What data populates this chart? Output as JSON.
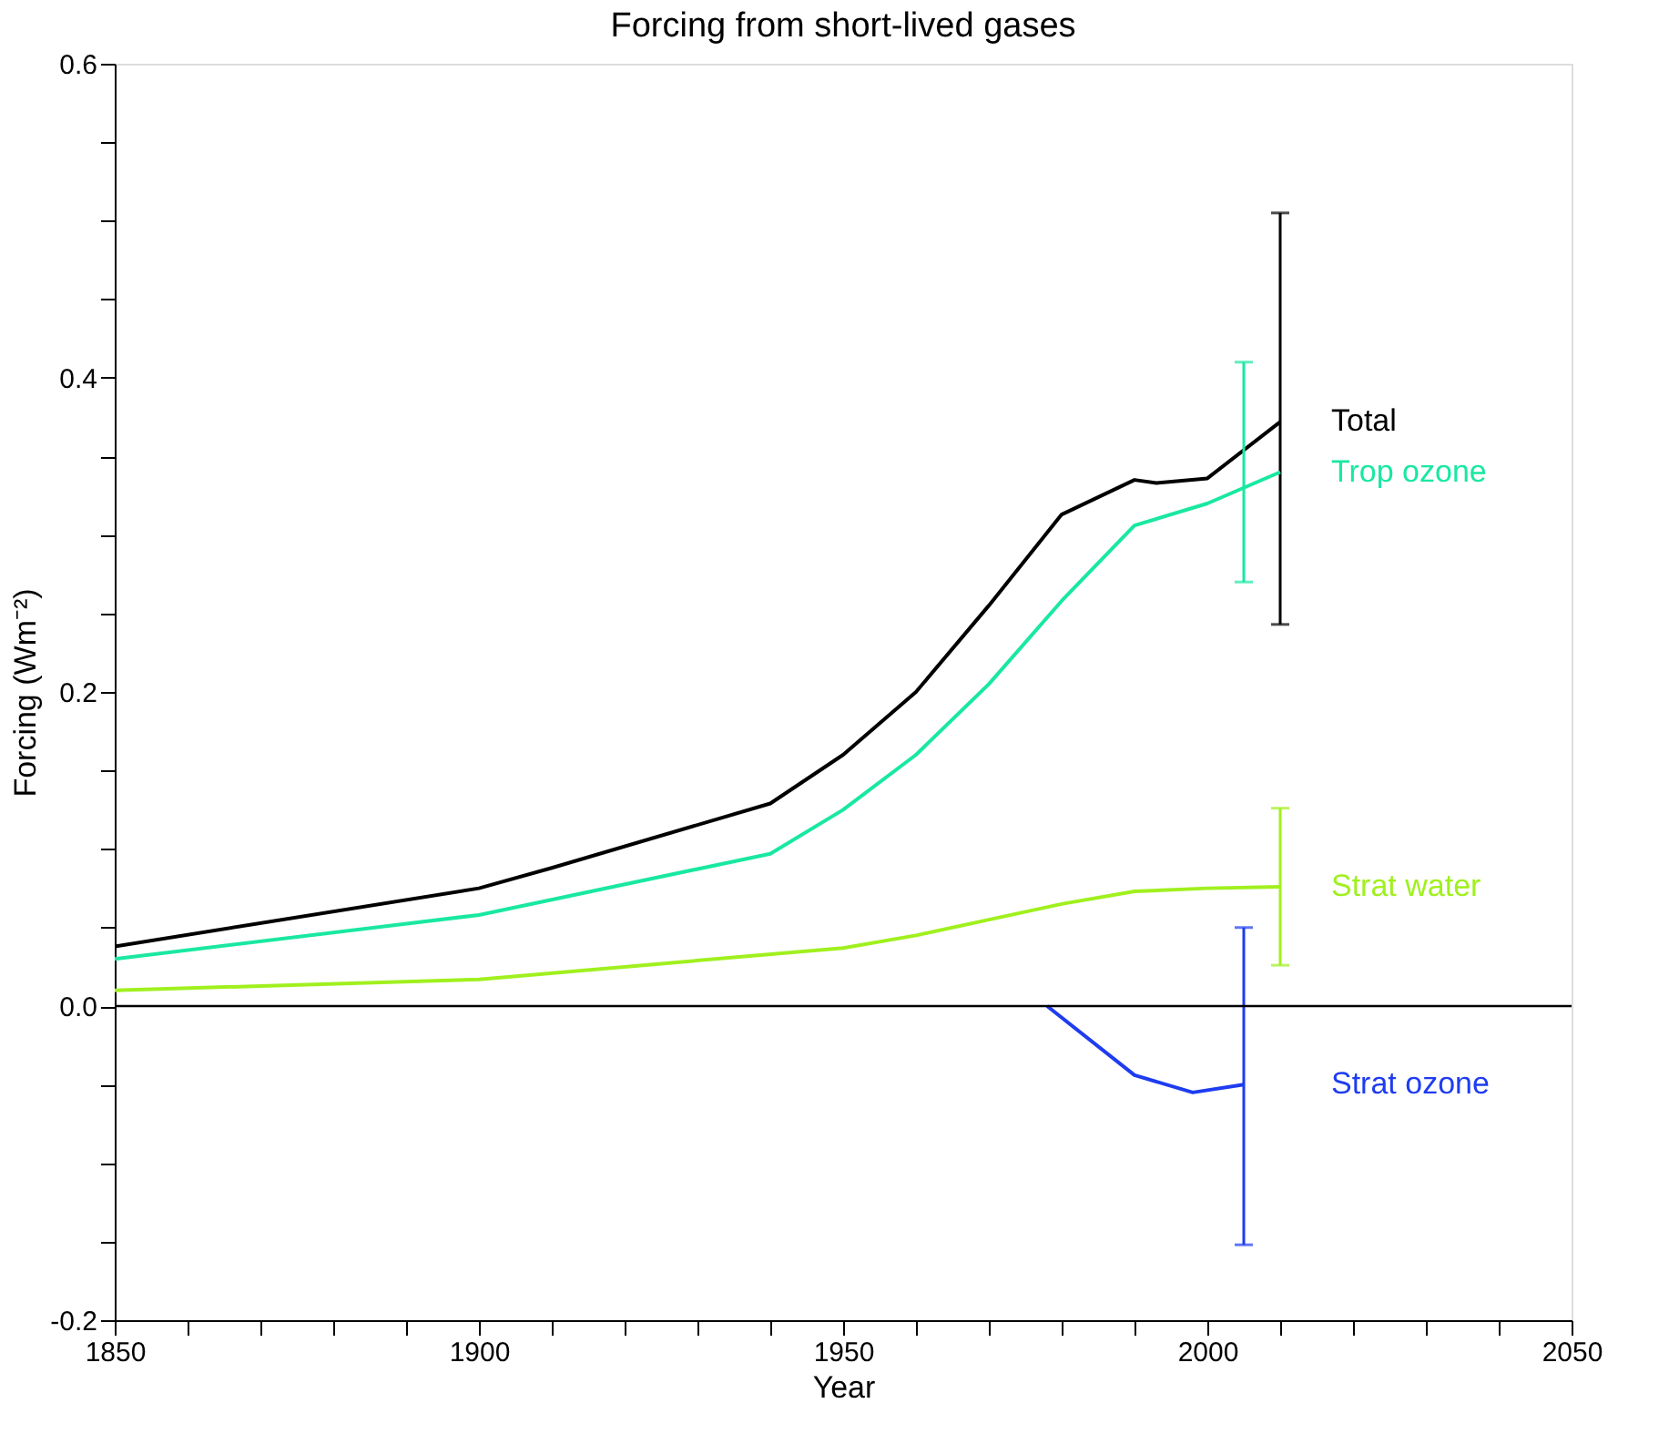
{
  "chart_data": {
    "type": "line",
    "title": "Forcing from short-lived gases",
    "xlabel": "Year",
    "ylabel": "Forcing (Wm⁻²)",
    "xlim": [
      1850,
      2050
    ],
    "xticks": [
      1850,
      1900,
      1950,
      2000,
      2050,
      {
        "value": 1860,
        "label": null
      },
      {
        "value": 1870,
        "label": null
      },
      {
        "value": 1880,
        "label": null
      },
      {
        "value": 1890,
        "label": null
      },
      {
        "value": 1910,
        "label": null
      },
      {
        "value": 1920,
        "label": null
      },
      {
        "value": 1930,
        "label": null
      },
      {
        "value": 1940,
        "label": null
      },
      {
        "value": 1960,
        "label": null
      },
      {
        "value": 1970,
        "label": null
      },
      {
        "value": 1980,
        "label": null
      },
      {
        "value": 1990,
        "label": null
      },
      {
        "value": 2010,
        "label": null
      },
      {
        "value": 2020,
        "label": null
      },
      {
        "value": 2030,
        "label": null
      },
      {
        "value": 2040,
        "label": null
      }
    ],
    "ylim": [
      -0.2,
      0.6
    ],
    "yticks": [
      -0.2,
      {
        "value": 0,
        "label": "0.0"
      },
      0.2,
      0.4,
      0.6,
      {
        "value": -0.15,
        "label": null
      },
      {
        "value": -0.1,
        "label": null
      },
      {
        "value": -0.05,
        "label": null
      },
      {
        "value": 0.05,
        "label": null
      },
      {
        "value": 0.1,
        "label": null
      },
      {
        "value": 0.15,
        "label": null
      },
      {
        "value": 0.25,
        "label": null
      },
      {
        "value": 0.3,
        "label": null
      },
      {
        "value": 0.35,
        "label": null
      },
      {
        "value": 0.45,
        "label": null
      },
      {
        "value": 0.5,
        "label": null
      },
      {
        "value": 0.55,
        "label": null
      }
    ],
    "grid": false,
    "marker": "none",
    "line_style": "solid",
    "ref_lines": [
      {
        "axis": "y",
        "value": 0,
        "color": "#000000"
      }
    ],
    "series": [
      {
        "name": "Total",
        "color": "#000000",
        "x": [
          1850,
          1900,
          1910,
          1940,
          1950,
          1960,
          1970,
          1980,
          1990,
          1993,
          2000,
          2010
        ],
        "values": [
          0.038,
          0.075,
          0.088,
          0.129,
          0.16,
          0.2,
          0.255,
          0.313,
          0.335,
          0.333,
          0.336,
          0.372
        ],
        "errors": [
          null,
          null,
          null,
          null,
          null,
          null,
          null,
          null,
          null,
          null,
          null,
          [
            0.243,
            0.505
          ]
        ]
      },
      {
        "name": "Trop ozone",
        "color": "#19e8a0",
        "x": [
          1850,
          1900,
          1940,
          1950,
          1960,
          1970,
          1980,
          1990,
          2000,
          2005,
          2010
        ],
        "values": [
          0.03,
          0.058,
          0.097,
          0.125,
          0.16,
          0.205,
          0.258,
          0.306,
          0.32,
          0.33,
          0.34
        ],
        "errors": [
          null,
          null,
          null,
          null,
          null,
          null,
          null,
          null,
          null,
          [
            0.27,
            0.41
          ],
          null
        ]
      },
      {
        "name": "Strat water",
        "color": "#a0f01e",
        "x": [
          1850,
          1900,
          1950,
          1960,
          1970,
          1980,
          1990,
          2000,
          2010
        ],
        "values": [
          0.01,
          0.017,
          0.037,
          0.045,
          0.055,
          0.065,
          0.073,
          0.075,
          0.076
        ],
        "errors": [
          null,
          null,
          null,
          null,
          null,
          null,
          null,
          null,
          [
            0.026,
            0.126
          ]
        ]
      },
      {
        "name": "Strat ozone",
        "color": "#1e3cf0",
        "x": [
          1978,
          1990,
          1998,
          2005
        ],
        "values": [
          0.0,
          -0.044,
          -0.055,
          -0.05
        ],
        "errors": [
          null,
          null,
          null,
          [
            -0.152,
            0.05
          ]
        ]
      }
    ]
  }
}
